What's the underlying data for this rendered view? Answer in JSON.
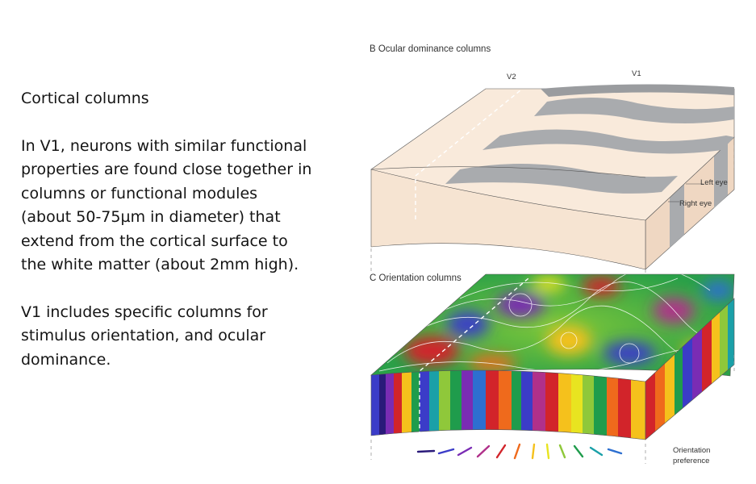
{
  "text": {
    "heading": "Cortical columns",
    "para1": "In V1, neurons with similar functional\nproperties are found close together in\ncolumns or functional modules\n(about 50-75µm in diameter) that\nextend from the cortical surface to\nthe white matter (about 2mm high).",
    "para2": "V1 includes specific columns for\nstimulus orientation, and ocular\ndominance."
  },
  "figure": {
    "panel_b": {
      "title": "B  Ocular dominance columns",
      "v2_label": "V2",
      "v1_label": "V1",
      "left_eye_label": "Left eye",
      "right_eye_label": "Right eye"
    },
    "panel_c": {
      "title": "C  Orientation columns",
      "legend_label_line1": "Orientation",
      "legend_label_line2": "preference"
    }
  },
  "colors": {
    "tissue": "#f6e4d2",
    "tissue_top": "#f9eadb",
    "stripe": "#a9abae",
    "orientation_palette": [
      "#2a1a7a",
      "#3b3cc8",
      "#7a2cb4",
      "#b0308a",
      "#d2242a",
      "#ef6a1c",
      "#f5c11c",
      "#e8e420",
      "#8fc83a",
      "#1f9c4c",
      "#1aa0a8",
      "#2d6fd0"
    ]
  }
}
